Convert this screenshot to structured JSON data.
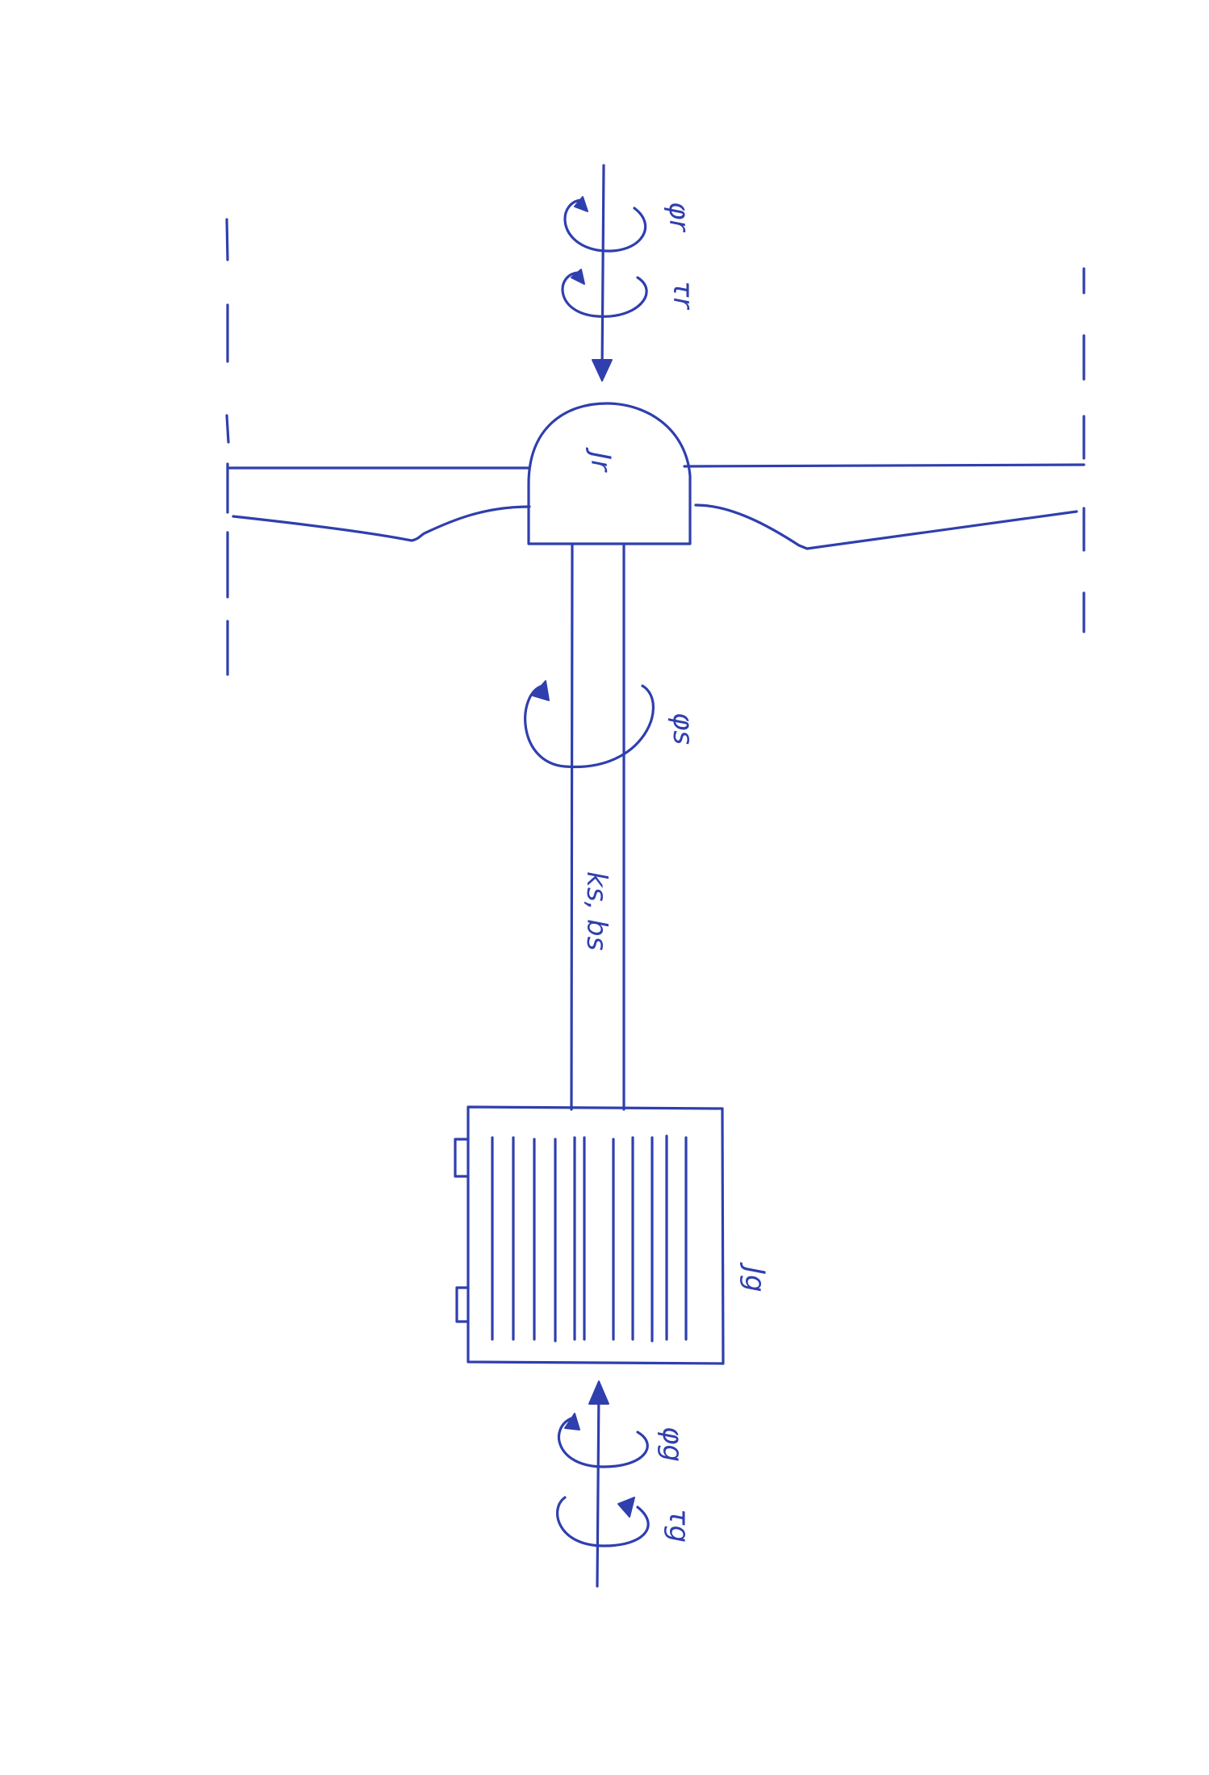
{
  "ink_color": "#2f3fae",
  "labels": {
    "rotor_angle": "φr",
    "rotor_torque": "τr",
    "rotor_inertia": "Jr",
    "shaft_angle": "φs",
    "shaft_params": "ks, bs",
    "generator_inertia": "Jg",
    "generator_angle": "φg",
    "generator_torque": "τg"
  },
  "icons": {
    "rotation_arrow": "curved-arrow-icon",
    "axis_arrow": "arrow-icon"
  }
}
